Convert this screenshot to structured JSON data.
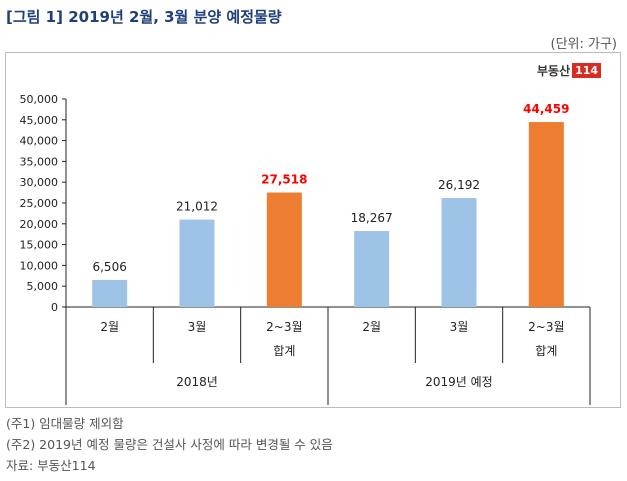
{
  "header": {
    "title": "[그림 1] 2019년 2월, 3월 분양 예정물량",
    "unit": "(단위: 가구)"
  },
  "logo": {
    "text": "부동산",
    "number": "114"
  },
  "chart_data": {
    "type": "bar",
    "ylim": [
      0,
      50000
    ],
    "yticks": [
      "50,000",
      "45,000",
      "40,000",
      "35,000",
      "30,000",
      "25,000",
      "20,000",
      "15,000",
      "10,000",
      "5,000",
      "0"
    ],
    "ytick_values": [
      50000,
      45000,
      40000,
      35000,
      30000,
      25000,
      20000,
      15000,
      10000,
      5000,
      0
    ],
    "bars": [
      {
        "category": "2월",
        "group": "2018년",
        "value": 6506,
        "label": "6,506",
        "color": "#9dc3e6",
        "highlight": false
      },
      {
        "category": "3월",
        "group": "2018년",
        "value": 21012,
        "label": "21,012",
        "color": "#9dc3e6",
        "highlight": false
      },
      {
        "category": "2~3월",
        "subcategory": "합계",
        "group": "2018년",
        "value": 27518,
        "label": "27,518",
        "color": "#ed7d31",
        "highlight": true
      },
      {
        "category": "2월",
        "group": "2019년 예정",
        "value": 18267,
        "label": "18,267",
        "color": "#9dc3e6",
        "highlight": false
      },
      {
        "category": "3월",
        "group": "2019년 예정",
        "value": 26192,
        "label": "26,192",
        "color": "#9dc3e6",
        "highlight": false
      },
      {
        "category": "2~3월",
        "subcategory": "합계",
        "group": "2019년 예정",
        "value": 44459,
        "label": "44,459",
        "color": "#ed7d31",
        "highlight": true
      }
    ],
    "groups": [
      "2018년",
      "2019년 예정"
    ],
    "highlight_label_color": "#ff0000",
    "grid": false
  },
  "notes": [
    "(주1) 임대물량 제외함",
    "(주2) 2019년 예정 물량은 건설사 사정에 따라 변경될 수 있음",
    "자료: 부동산114"
  ]
}
